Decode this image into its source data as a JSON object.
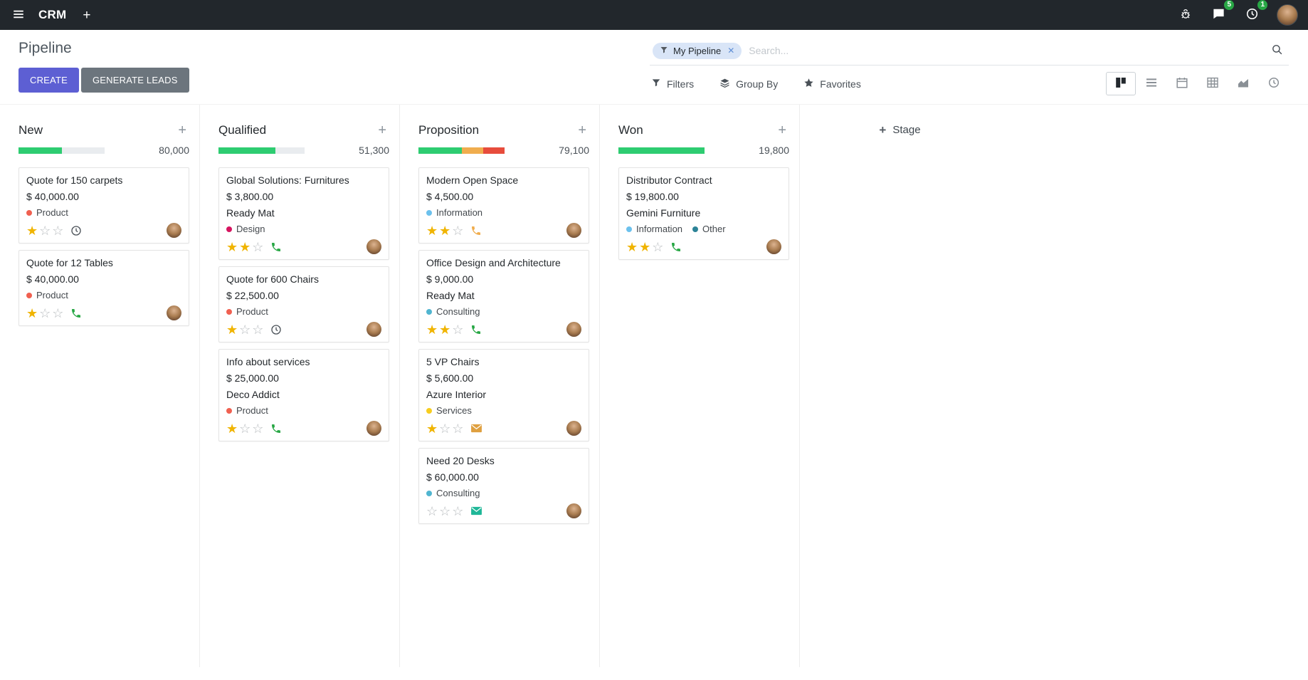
{
  "navbar": {
    "app_name": "CRM",
    "message_count": "5",
    "activity_count": "1"
  },
  "control_panel": {
    "title": "Pipeline",
    "create_label": "CREATE",
    "generate_leads_label": "GENERATE LEADS",
    "search": {
      "facet_label": "My Pipeline",
      "placeholder": "Search...",
      "remove_label": "✕"
    },
    "filters_label": "Filters",
    "group_by_label": "Group By",
    "favorites_label": "Favorites",
    "view_switcher": [
      "kanban",
      "list",
      "calendar",
      "pivot",
      "graph",
      "activity"
    ],
    "active_view": "kanban"
  },
  "kanban": {
    "add_stage_label": "Stage",
    "track_color": "#e9ecef",
    "columns": [
      {
        "name": "New",
        "total": "80,000",
        "progress": [
          {
            "color": "#2ecc71",
            "pct": 50
          }
        ],
        "cards": [
          {
            "title": "Quote for 150 carpets",
            "amount": "$ 40,000.00",
            "tags": [
              {
                "label": "Product",
                "color": "#f06050"
              }
            ],
            "stars": 1,
            "activity": {
              "type": "clock",
              "color": "#495057"
            }
          },
          {
            "title": "Quote for 12 Tables",
            "amount": "$ 40,000.00",
            "tags": [
              {
                "label": "Product",
                "color": "#f06050"
              }
            ],
            "stars": 1,
            "activity": {
              "type": "phone",
              "color": "#28a745"
            }
          }
        ]
      },
      {
        "name": "Qualified",
        "total": "51,300",
        "progress": [
          {
            "color": "#2ecc71",
            "pct": 66
          }
        ],
        "cards": [
          {
            "title": "Global Solutions: Furnitures",
            "amount": "$ 3,800.00",
            "partner": "Ready Mat",
            "tags": [
              {
                "label": "Design",
                "color": "#d6145f"
              }
            ],
            "stars": 2,
            "activity": {
              "type": "phone",
              "color": "#28a745"
            }
          },
          {
            "title": "Quote for 600 Chairs",
            "amount": "$ 22,500.00",
            "tags": [
              {
                "label": "Product",
                "color": "#f06050"
              }
            ],
            "stars": 1,
            "activity": {
              "type": "clock",
              "color": "#495057"
            }
          },
          {
            "title": "Info about services",
            "amount": "$ 25,000.00",
            "partner": "Deco Addict",
            "tags": [
              {
                "label": "Product",
                "color": "#f06050"
              }
            ],
            "stars": 1,
            "activity": {
              "type": "phone",
              "color": "#28a745"
            }
          }
        ]
      },
      {
        "name": "Proposition",
        "total": "79,100",
        "progress": [
          {
            "color": "#2ecc71",
            "pct": 50
          },
          {
            "color": "#f0ad4e",
            "pct": 25
          },
          {
            "color": "#e74c3c",
            "pct": 25
          }
        ],
        "cards": [
          {
            "title": "Modern Open Space",
            "amount": "$ 4,500.00",
            "tags": [
              {
                "label": "Information",
                "color": "#6cc1ed"
              }
            ],
            "stars": 2,
            "activity": {
              "type": "phone",
              "color": "#f0ad4e"
            }
          },
          {
            "title": "Office Design and Architecture",
            "amount": "$ 9,000.00",
            "partner": "Ready Mat",
            "tags": [
              {
                "label": "Consulting",
                "color": "#50b5d0"
              }
            ],
            "stars": 2,
            "activity": {
              "type": "phone",
              "color": "#28a745"
            }
          },
          {
            "title": "5 VP Chairs",
            "amount": "$ 5,600.00",
            "partner": "Azure Interior",
            "tags": [
              {
                "label": "Services",
                "color": "#f7cd1f"
              }
            ],
            "stars": 1,
            "activity": {
              "type": "mail",
              "color": "#dfa040"
            }
          },
          {
            "title": "Need 20 Desks",
            "amount": "$ 60,000.00",
            "tags": [
              {
                "label": "Consulting",
                "color": "#50b5d0"
              }
            ],
            "stars": 0,
            "activity": {
              "type": "mail",
              "color": "#1fb798"
            }
          }
        ]
      },
      {
        "name": "Won",
        "total": "19,800",
        "progress": [
          {
            "color": "#2ecc71",
            "pct": 100
          }
        ],
        "cards": [
          {
            "title": "Distributor Contract",
            "amount": "$ 19,800.00",
            "partner": "Gemini Furniture",
            "tags": [
              {
                "label": "Information",
                "color": "#6cc1ed"
              },
              {
                "label": "Other",
                "color": "#2c8397"
              }
            ],
            "stars": 2,
            "activity": {
              "type": "phone",
              "color": "#28a745"
            }
          }
        ]
      }
    ]
  }
}
